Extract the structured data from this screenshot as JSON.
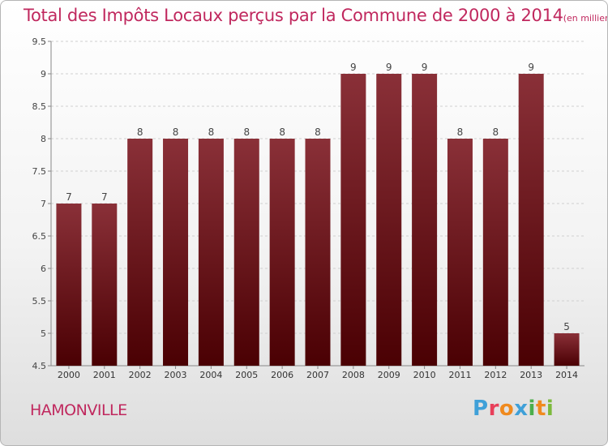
{
  "header": {
    "title": "Total des Impôts Locaux perçus par la Commune de 2000 à 2014",
    "unit_note": "(en milliers d'€)"
  },
  "footer": {
    "commune": "HAMONVILLE",
    "logo_text": "Proxiti"
  },
  "colors": {
    "title": "#c0285e",
    "bar_top": "#8a3038",
    "bar_bottom": "#4a0003",
    "grid": "#d0d0d0",
    "logo_letters": [
      "#3fa0d8",
      "#e83f5a",
      "#f08a1e",
      "#3fa0d8",
      "#4cae4c",
      "#f08a1e",
      "#7cba3c"
    ]
  },
  "chart_data": {
    "type": "bar",
    "title": "Total des Impôts Locaux perçus par la Commune de 2000 à 2014",
    "xlabel": "",
    "ylabel": "en milliers d'€",
    "categories": [
      "2000",
      "2001",
      "2002",
      "2003",
      "2004",
      "2005",
      "2006",
      "2007",
      "2008",
      "2009",
      "2010",
      "2011",
      "2012",
      "2013",
      "2014"
    ],
    "values": [
      7,
      7,
      8,
      8,
      8,
      8,
      8,
      8,
      9,
      9,
      9,
      8,
      8,
      9,
      5
    ],
    "data_labels": [
      "7",
      "7",
      "8",
      "8",
      "8",
      "8",
      "8",
      "8",
      "9",
      "9",
      "9",
      "8",
      "8",
      "9",
      "5"
    ],
    "ylim": [
      4.5,
      9.5
    ],
    "yticks": [
      4.5,
      5,
      5.5,
      6,
      6.5,
      7,
      7.5,
      8,
      8.5,
      9,
      9.5
    ],
    "ytick_labels": [
      "4.5",
      "5",
      "5.5",
      "6",
      "6.5",
      "7",
      "7.5",
      "8",
      "8.5",
      "9",
      "9.5"
    ],
    "grid": true,
    "legend": "none"
  }
}
